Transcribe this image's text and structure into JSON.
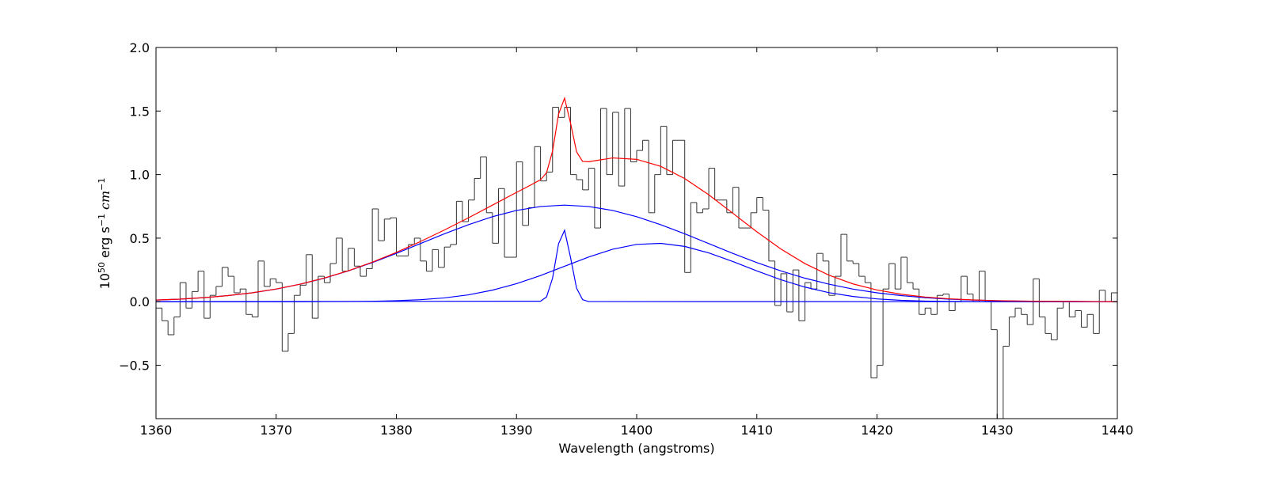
{
  "chart_data": {
    "type": "line",
    "x_label": "Wavelength (angstroms)",
    "y_label_parts": [
      {
        "text": "10"
      },
      {
        "text": "50",
        "sup": true
      },
      {
        "text": " erg s"
      },
      {
        "text": "−1",
        "sup": true
      },
      {
        "text": " cm",
        "italic": true
      },
      {
        "text": "−1",
        "sup": true
      }
    ],
    "xlim": [
      1360,
      1440
    ],
    "ylim": [
      -0.92,
      2.0
    ],
    "xticks": [
      1360,
      1370,
      1380,
      1390,
      1400,
      1410,
      1420,
      1430,
      1440
    ],
    "yticks": [
      {
        "value": -0.5,
        "label": "−0.5"
      },
      {
        "value": 0,
        "label": "0.0"
      },
      {
        "value": 0.5,
        "label": "0.5"
      },
      {
        "value": 1,
        "label": "1.0"
      },
      {
        "value": 1.5,
        "label": "1.5"
      },
      {
        "value": 2,
        "label": "2.0"
      }
    ],
    "grid": false,
    "series": [
      {
        "style": "step",
        "color": "#333333",
        "x": [
          1360,
          1360.5,
          1361,
          1361.5,
          1362,
          1362.5,
          1363,
          1363.5,
          1364,
          1364.5,
          1365,
          1365.5,
          1366,
          1366.5,
          1367,
          1367.5,
          1368,
          1368.5,
          1369,
          1369.5,
          1370,
          1370.5,
          1371,
          1371.5,
          1372,
          1372.5,
          1373,
          1373.5,
          1374,
          1374.5,
          1375,
          1375.5,
          1376,
          1376.5,
          1377,
          1377.5,
          1378,
          1378.5,
          1379,
          1379.5,
          1380,
          1380.5,
          1381,
          1381.5,
          1382,
          1382.5,
          1383,
          1383.5,
          1384,
          1384.5,
          1385,
          1385.5,
          1386,
          1386.5,
          1387,
          1387.5,
          1388,
          1388.5,
          1389,
          1389.5,
          1390,
          1390.5,
          1391,
          1391.5,
          1392,
          1392.5,
          1393,
          1393.5,
          1394,
          1394.5,
          1395,
          1395.5,
          1396,
          1396.5,
          1397,
          1397.5,
          1398,
          1398.5,
          1399,
          1399.5,
          1400,
          1400.5,
          1401,
          1401.5,
          1402,
          1402.5,
          1403,
          1403.5,
          1404,
          1404.5,
          1405,
          1405.5,
          1406,
          1406.5,
          1407,
          1407.5,
          1408,
          1408.5,
          1409,
          1409.5,
          1410,
          1410.5,
          1411,
          1411.5,
          1412,
          1412.5,
          1413,
          1413.5,
          1414,
          1414.5,
          1415,
          1415.5,
          1416,
          1416.5,
          1417,
          1417.5,
          1418,
          1418.5,
          1419,
          1419.5,
          1420,
          1420.5,
          1421,
          1421.5,
          1422,
          1422.5,
          1423,
          1423.5,
          1424,
          1424.5,
          1425,
          1425.5,
          1426,
          1426.5,
          1427,
          1427.5,
          1428,
          1428.5,
          1429,
          1429.5,
          1430,
          1430.5,
          1431,
          1431.5,
          1432,
          1432.5,
          1433,
          1433.5,
          1434,
          1434.5,
          1435,
          1435.5,
          1436,
          1436.5,
          1437,
          1437.5,
          1438,
          1438.5,
          1439,
          1439.5
        ],
        "values": [
          -0.05,
          -0.15,
          -0.26,
          -0.12,
          0.15,
          -0.05,
          0.08,
          0.24,
          -0.13,
          0.05,
          0.12,
          0.27,
          0.2,
          0.07,
          0.1,
          -0.1,
          -0.12,
          0.32,
          0.12,
          0.18,
          0.15,
          -0.39,
          -0.25,
          0.05,
          0.13,
          0.37,
          -0.13,
          0.2,
          0.15,
          0.3,
          0.5,
          0.24,
          0.42,
          0.28,
          0.2,
          0.26,
          0.73,
          0.48,
          0.65,
          0.66,
          0.36,
          0.36,
          0.45,
          0.5,
          0.32,
          0.24,
          0.41,
          0.27,
          0.43,
          0.45,
          0.79,
          0.63,
          0.8,
          0.97,
          1.14,
          0.7,
          0.46,
          0.89,
          0.35,
          0.35,
          1.1,
          0.6,
          0.74,
          1.22,
          0.95,
          1.02,
          1.53,
          1.45,
          1.53,
          1.0,
          0.96,
          0.88,
          1.05,
          0.58,
          1.52,
          1.0,
          1.49,
          0.91,
          1.52,
          1.1,
          1.19,
          1.27,
          0.7,
          1.0,
          1.38,
          1.0,
          1.27,
          1.27,
          0.23,
          0.78,
          0.7,
          0.73,
          1.05,
          0.8,
          0.8,
          0.7,
          0.9,
          0.58,
          0.58,
          0.7,
          0.82,
          0.72,
          0.32,
          -0.03,
          0.22,
          -0.08,
          0.25,
          -0.15,
          0.15,
          0.1,
          0.38,
          0.32,
          0.05,
          0.2,
          0.53,
          0.32,
          0.3,
          0.2,
          0.15,
          -0.6,
          -0.5,
          0.1,
          0.3,
          0.1,
          0.35,
          0.15,
          0.1,
          -0.1,
          -0.05,
          -0.1,
          0.05,
          0.06,
          -0.07,
          0.0,
          0.2,
          0.06,
          0.0,
          0.24,
          0.0,
          -0.22,
          -0.92,
          -0.35,
          -0.12,
          -0.05,
          -0.1,
          -0.18,
          0.18,
          -0.12,
          -0.25,
          -0.3,
          -0.05,
          0.0,
          -0.12,
          -0.07,
          -0.2,
          -0.1,
          -0.25,
          0.09,
          0.0,
          0.07
        ]
      },
      {
        "style": "line",
        "color": "#0000ff",
        "x": [
          1360,
          1362,
          1364,
          1366,
          1368,
          1370,
          1372,
          1374,
          1376,
          1378,
          1380,
          1382,
          1384,
          1386,
          1388,
          1390,
          1392,
          1394,
          1396,
          1398,
          1400,
          1402,
          1404,
          1406,
          1408,
          1410,
          1412,
          1414,
          1416,
          1418,
          1420,
          1422,
          1424,
          1426,
          1428,
          1430,
          1432,
          1434,
          1436,
          1438,
          1440
        ],
        "values": [
          0.013,
          0.02,
          0.032,
          0.048,
          0.07,
          0.099,
          0.138,
          0.185,
          0.242,
          0.308,
          0.38,
          0.457,
          0.534,
          0.606,
          0.669,
          0.718,
          0.749,
          0.76,
          0.749,
          0.718,
          0.669,
          0.606,
          0.534,
          0.457,
          0.38,
          0.308,
          0.242,
          0.185,
          0.138,
          0.099,
          0.07,
          0.048,
          0.032,
          0.02,
          0.013,
          0.008,
          0.005,
          0.003,
          0.002,
          0.001,
          0.0
        ]
      },
      {
        "style": "line",
        "color": "#0000ff",
        "x": [
          1360,
          1362,
          1364,
          1366,
          1368,
          1370,
          1372,
          1374,
          1376,
          1378,
          1380,
          1382,
          1384,
          1386,
          1388,
          1390,
          1392,
          1394,
          1396,
          1398,
          1400,
          1402,
          1404,
          1406,
          1408,
          1410,
          1412,
          1414,
          1416,
          1418,
          1420,
          1422,
          1424,
          1426,
          1428,
          1430,
          1432,
          1434,
          1436,
          1438,
          1440
        ],
        "values": [
          0,
          0,
          0,
          0,
          0,
          0.0,
          0.0,
          0.001,
          0.001,
          0.003,
          0.008,
          0.016,
          0.03,
          0.054,
          0.091,
          0.142,
          0.206,
          0.279,
          0.351,
          0.413,
          0.451,
          0.459,
          0.435,
          0.384,
          0.316,
          0.242,
          0.173,
          0.115,
          0.071,
          0.041,
          0.022,
          0.011,
          0.005,
          0.002,
          0.001,
          0.0,
          0,
          0,
          0,
          0,
          0
        ]
      },
      {
        "style": "line",
        "color": "#0000ff",
        "x": [
          1360,
          1392,
          1392.5,
          1393,
          1393.5,
          1394,
          1394.5,
          1395,
          1395.5,
          1396,
          1440
        ],
        "values": [
          0,
          0.004,
          0.037,
          0.185,
          0.456,
          0.562,
          0.346,
          0.106,
          0.016,
          0.001,
          0
        ]
      },
      {
        "style": "line",
        "color": "#ff0000",
        "x": [
          1360,
          1362,
          1364,
          1366,
          1368,
          1370,
          1372,
          1374,
          1376,
          1378,
          1380,
          1382,
          1384,
          1386,
          1388,
          1390,
          1391,
          1392,
          1392.5,
          1393,
          1393.5,
          1394,
          1394.5,
          1395,
          1395.5,
          1396,
          1398,
          1400,
          1402,
          1404,
          1406,
          1408,
          1410,
          1412,
          1414,
          1416,
          1418,
          1420,
          1422,
          1424,
          1426,
          1428,
          1430,
          1432,
          1434,
          1436,
          1438,
          1440
        ],
        "values": [
          0.013,
          0.02,
          0.032,
          0.048,
          0.07,
          0.1,
          0.138,
          0.186,
          0.243,
          0.311,
          0.388,
          0.473,
          0.564,
          0.66,
          0.76,
          0.86,
          0.909,
          0.959,
          1.015,
          1.184,
          1.476,
          1.601,
          1.404,
          1.179,
          1.104,
          1.101,
          1.131,
          1.12,
          1.065,
          0.969,
          0.841,
          0.696,
          0.55,
          0.415,
          0.3,
          0.209,
          0.14,
          0.092,
          0.059,
          0.037,
          0.023,
          0.014,
          0.008,
          0.005,
          0.003,
          0.002,
          0.001,
          0.0
        ]
      }
    ]
  }
}
